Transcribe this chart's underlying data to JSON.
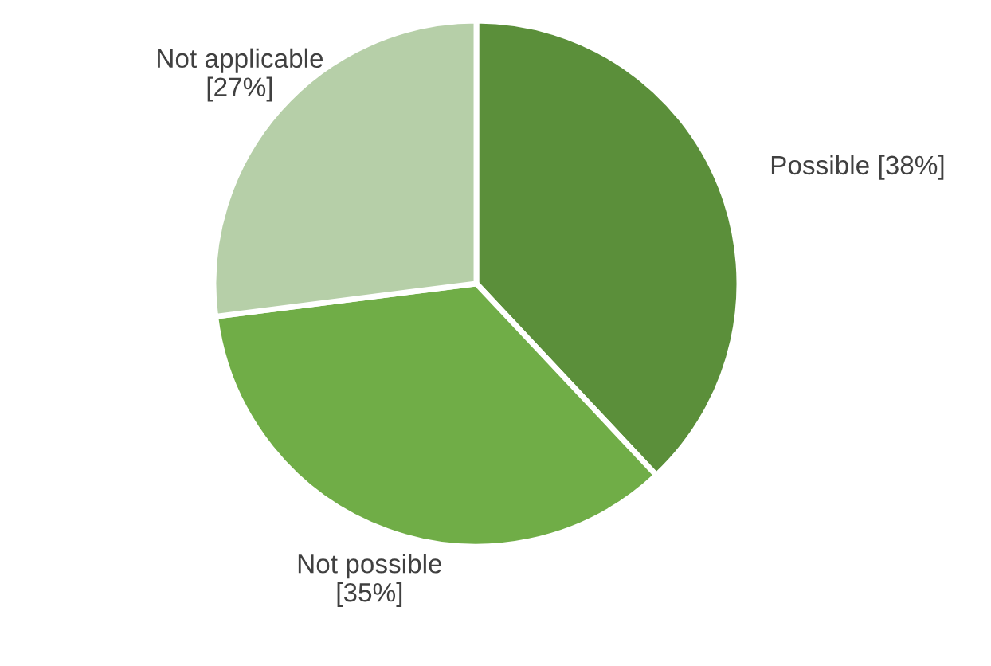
{
  "chart_data": {
    "type": "pie",
    "categories": [
      "Possible",
      "Not possible",
      "Not applicable"
    ],
    "values": [
      38,
      35,
      27
    ],
    "colors": [
      "#5b8f3a",
      "#70ad47",
      "#b6cfa8"
    ],
    "value_labels": [
      "[38%]",
      "[35%]",
      "[27%]"
    ],
    "legend": false
  }
}
